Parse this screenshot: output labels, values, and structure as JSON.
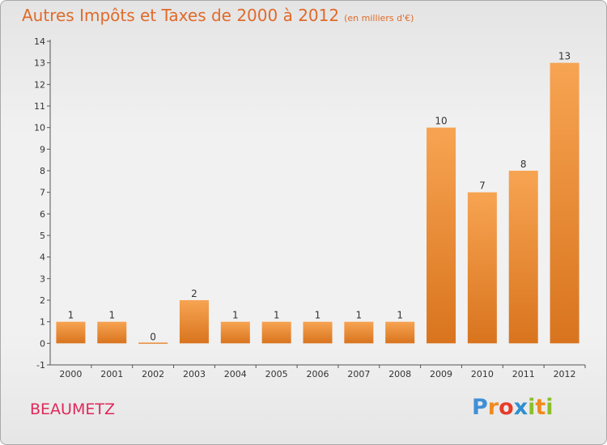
{
  "chart_data": {
    "type": "bar",
    "title": "Autres Impôts et Taxes de 2000 à 2012",
    "subtitle": "(en milliers d'€)",
    "categories": [
      "2000",
      "2001",
      "2002",
      "2003",
      "2004",
      "2005",
      "2006",
      "2007",
      "2008",
      "2009",
      "2010",
      "2011",
      "2012"
    ],
    "values": [
      1,
      1,
      0,
      2,
      1,
      1,
      1,
      1,
      1,
      10,
      7,
      8,
      13
    ],
    "ylim": [
      -1,
      14
    ],
    "yticks": [
      -1,
      0,
      1,
      2,
      3,
      4,
      5,
      6,
      7,
      8,
      9,
      10,
      11,
      12,
      13,
      14
    ],
    "grid": false,
    "xlabel": "",
    "ylabel": "",
    "colors": {
      "bar_top": "#f7a452",
      "bar_bottom": "#d9741e",
      "title": "#e06a2a",
      "commune": "#e0285a"
    }
  },
  "commune": "BEAUMETZ",
  "logo": {
    "letters": [
      {
        "ch": "P",
        "color": "#3f8fd6"
      },
      {
        "ch": "r",
        "color": "#f08a1c"
      },
      {
        "ch": "o",
        "color": "#e63b2c"
      },
      {
        "ch": "x",
        "color": "#2e8fd0"
      },
      {
        "ch": "i",
        "color": "#8bbf2a"
      },
      {
        "ch": "t",
        "color": "#f08a1c"
      },
      {
        "ch": "i",
        "color": "#8bbf2a"
      }
    ]
  }
}
